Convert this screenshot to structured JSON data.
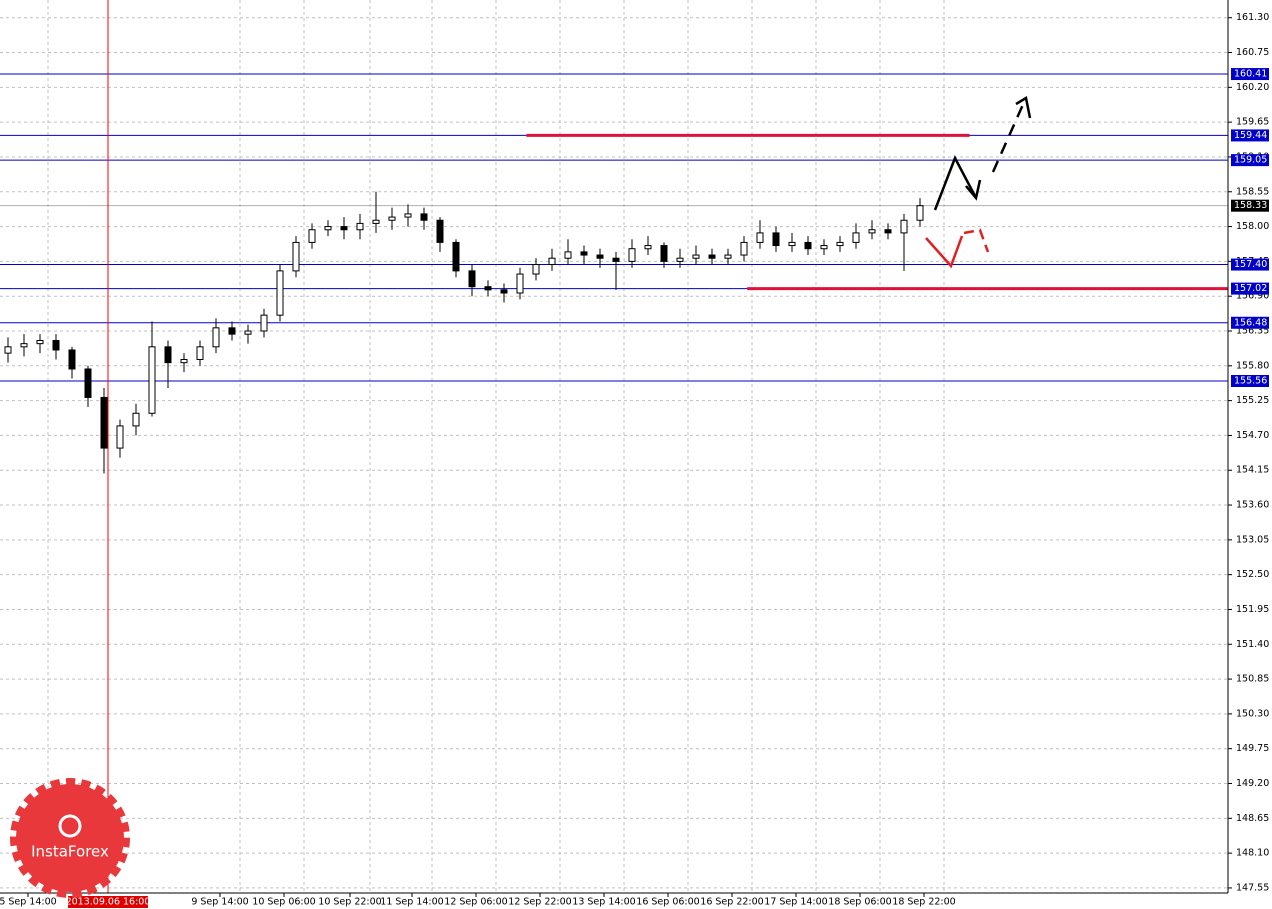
{
  "chart_data": {
    "type": "candlestick",
    "watermark": "InstaForex",
    "open": [
      156.0,
      156.1,
      156.15,
      156.2,
      156.05,
      155.75,
      155.3,
      154.5,
      154.85,
      155.05,
      156.1,
      155.85,
      155.9,
      156.1,
      156.4,
      156.3,
      156.35,
      156.6,
      157.3,
      157.75,
      157.95,
      158.0,
      157.95,
      158.05,
      158.1,
      158.15,
      158.2,
      158.1,
      157.75,
      157.3,
      157.05,
      157.0,
      156.95,
      157.25,
      157.4,
      157.5,
      157.6,
      157.55,
      157.5,
      157.45,
      157.65,
      157.7,
      157.45,
      157.5,
      157.55,
      157.5,
      157.55,
      157.75,
      157.9,
      157.7,
      157.75,
      157.65,
      157.7,
      157.75,
      157.9,
      157.95,
      157.9,
      158.1
    ],
    "high": [
      156.25,
      156.3,
      156.3,
      156.3,
      156.1,
      155.8,
      155.45,
      154.95,
      155.2,
      156.5,
      156.2,
      156.0,
      156.2,
      156.55,
      156.5,
      156.45,
      156.7,
      157.4,
      157.85,
      158.05,
      158.1,
      158.15,
      158.2,
      158.55,
      158.3,
      158.35,
      158.3,
      158.15,
      157.8,
      157.4,
      157.15,
      157.1,
      157.35,
      157.5,
      157.65,
      157.8,
      157.7,
      157.65,
      157.6,
      157.8,
      157.85,
      157.75,
      157.65,
      157.7,
      157.65,
      157.65,
      157.85,
      158.1,
      158.0,
      157.9,
      157.85,
      157.8,
      157.85,
      158.05,
      158.1,
      158.05,
      158.2,
      158.45
    ],
    "low": [
      155.85,
      155.95,
      156.0,
      155.9,
      155.6,
      155.15,
      154.1,
      154.35,
      154.7,
      155.0,
      155.45,
      155.7,
      155.8,
      156.0,
      156.2,
      156.15,
      156.25,
      156.5,
      157.2,
      157.65,
      157.85,
      157.8,
      157.8,
      157.9,
      157.95,
      158.0,
      157.95,
      157.6,
      157.2,
      156.9,
      156.9,
      156.8,
      156.85,
      157.15,
      157.3,
      157.4,
      157.4,
      157.35,
      157.0,
      157.35,
      157.55,
      157.35,
      157.35,
      157.4,
      157.4,
      157.4,
      157.45,
      157.65,
      157.6,
      157.6,
      157.55,
      157.55,
      157.6,
      157.65,
      157.8,
      157.8,
      157.3,
      158.0
    ],
    "close": [
      156.1,
      156.15,
      156.2,
      156.05,
      155.75,
      155.3,
      154.5,
      154.85,
      155.05,
      156.1,
      155.85,
      155.9,
      156.1,
      156.4,
      156.3,
      156.35,
      156.6,
      157.3,
      157.75,
      157.95,
      158.0,
      157.95,
      158.05,
      158.1,
      158.15,
      158.2,
      158.1,
      157.75,
      157.3,
      157.05,
      157.0,
      156.95,
      157.25,
      157.4,
      157.5,
      157.6,
      157.55,
      157.5,
      157.45,
      157.65,
      157.7,
      157.45,
      157.5,
      157.55,
      157.5,
      157.55,
      157.75,
      157.9,
      157.7,
      157.75,
      157.65,
      157.7,
      157.75,
      157.9,
      157.95,
      157.9,
      158.1,
      158.33
    ],
    "xlim": [
      -0.5,
      76.25
    ],
    "ylim": [
      147.47,
      161.58
    ],
    "xticks": [
      {
        "value": 1.25,
        "label": "5 Sep 14:00"
      },
      {
        "value": 13.25,
        "label": "9 Sep 14:00"
      },
      {
        "value": 17.25,
        "label": "10 Sep 06:00"
      },
      {
        "value": 21.375,
        "label": "10 Sep 22:00"
      },
      {
        "value": 25.25,
        "label": "11 Sep 14:00"
      },
      {
        "value": 29.25,
        "label": "12 Sep 06:00"
      },
      {
        "value": 33.25,
        "label": "12 Sep 22:00"
      },
      {
        "value": 37.25,
        "label": "13 Sep 14:00"
      },
      {
        "value": 41.25,
        "label": "16 Sep 06:00"
      },
      {
        "value": 45.25,
        "label": "16 Sep 22:00"
      },
      {
        "value": 49.25,
        "label": "17 Sep 14:00"
      },
      {
        "value": 53.25,
        "label": "18 Sep 06:00"
      },
      {
        "value": 57.25,
        "label": "18 Sep 22:00"
      }
    ],
    "yticks": [
      {
        "value": 161.3,
        "label": "161.30"
      },
      160.75,
      {
        "value": 160.2,
        "label": "160.20"
      },
      159.65,
      {
        "value": 159.1,
        "label": "159.10"
      },
      158.55,
      {
        "value": 158,
        "label": "158.00"
      },
      157.45,
      {
        "value": 156.9,
        "label": "156.90"
      },
      156.35,
      {
        "value": 155.8,
        "label": "155.80"
      },
      155.25,
      {
        "value": 154.7,
        "label": "154.70"
      },
      154.15,
      {
        "value": 153.6,
        "label": "153.60"
      },
      153.05,
      {
        "value": 152.5,
        "label": "152.50"
      },
      151.95,
      {
        "value": 151.4,
        "label": "151.40"
      },
      150.85,
      {
        "value": 150.3,
        "label": "150.30"
      },
      149.75,
      {
        "value": 149.2,
        "label": "149.20"
      },
      148.65,
      {
        "value": 148.1,
        "label": "148.10"
      },
      147.55
    ],
    "grid": true,
    "levels": [
      160.41,
      159.44,
      159.05,
      {
        "value": 157.4,
        "label": "157.40"
      },
      157.02,
      156.48,
      155.56
    ],
    "level_color": "#0000c8",
    "current_price": 158.33,
    "red_lines": [
      {
        "value": 159.44,
        "x": [
          32.4,
          60.1
        ]
      },
      {
        "value": 157.02,
        "x": [
          46.2,
          76.25
        ]
      }
    ],
    "marker": {
      "value": 6.25,
      "label": "2013.09.06 16:00"
    }
  }
}
